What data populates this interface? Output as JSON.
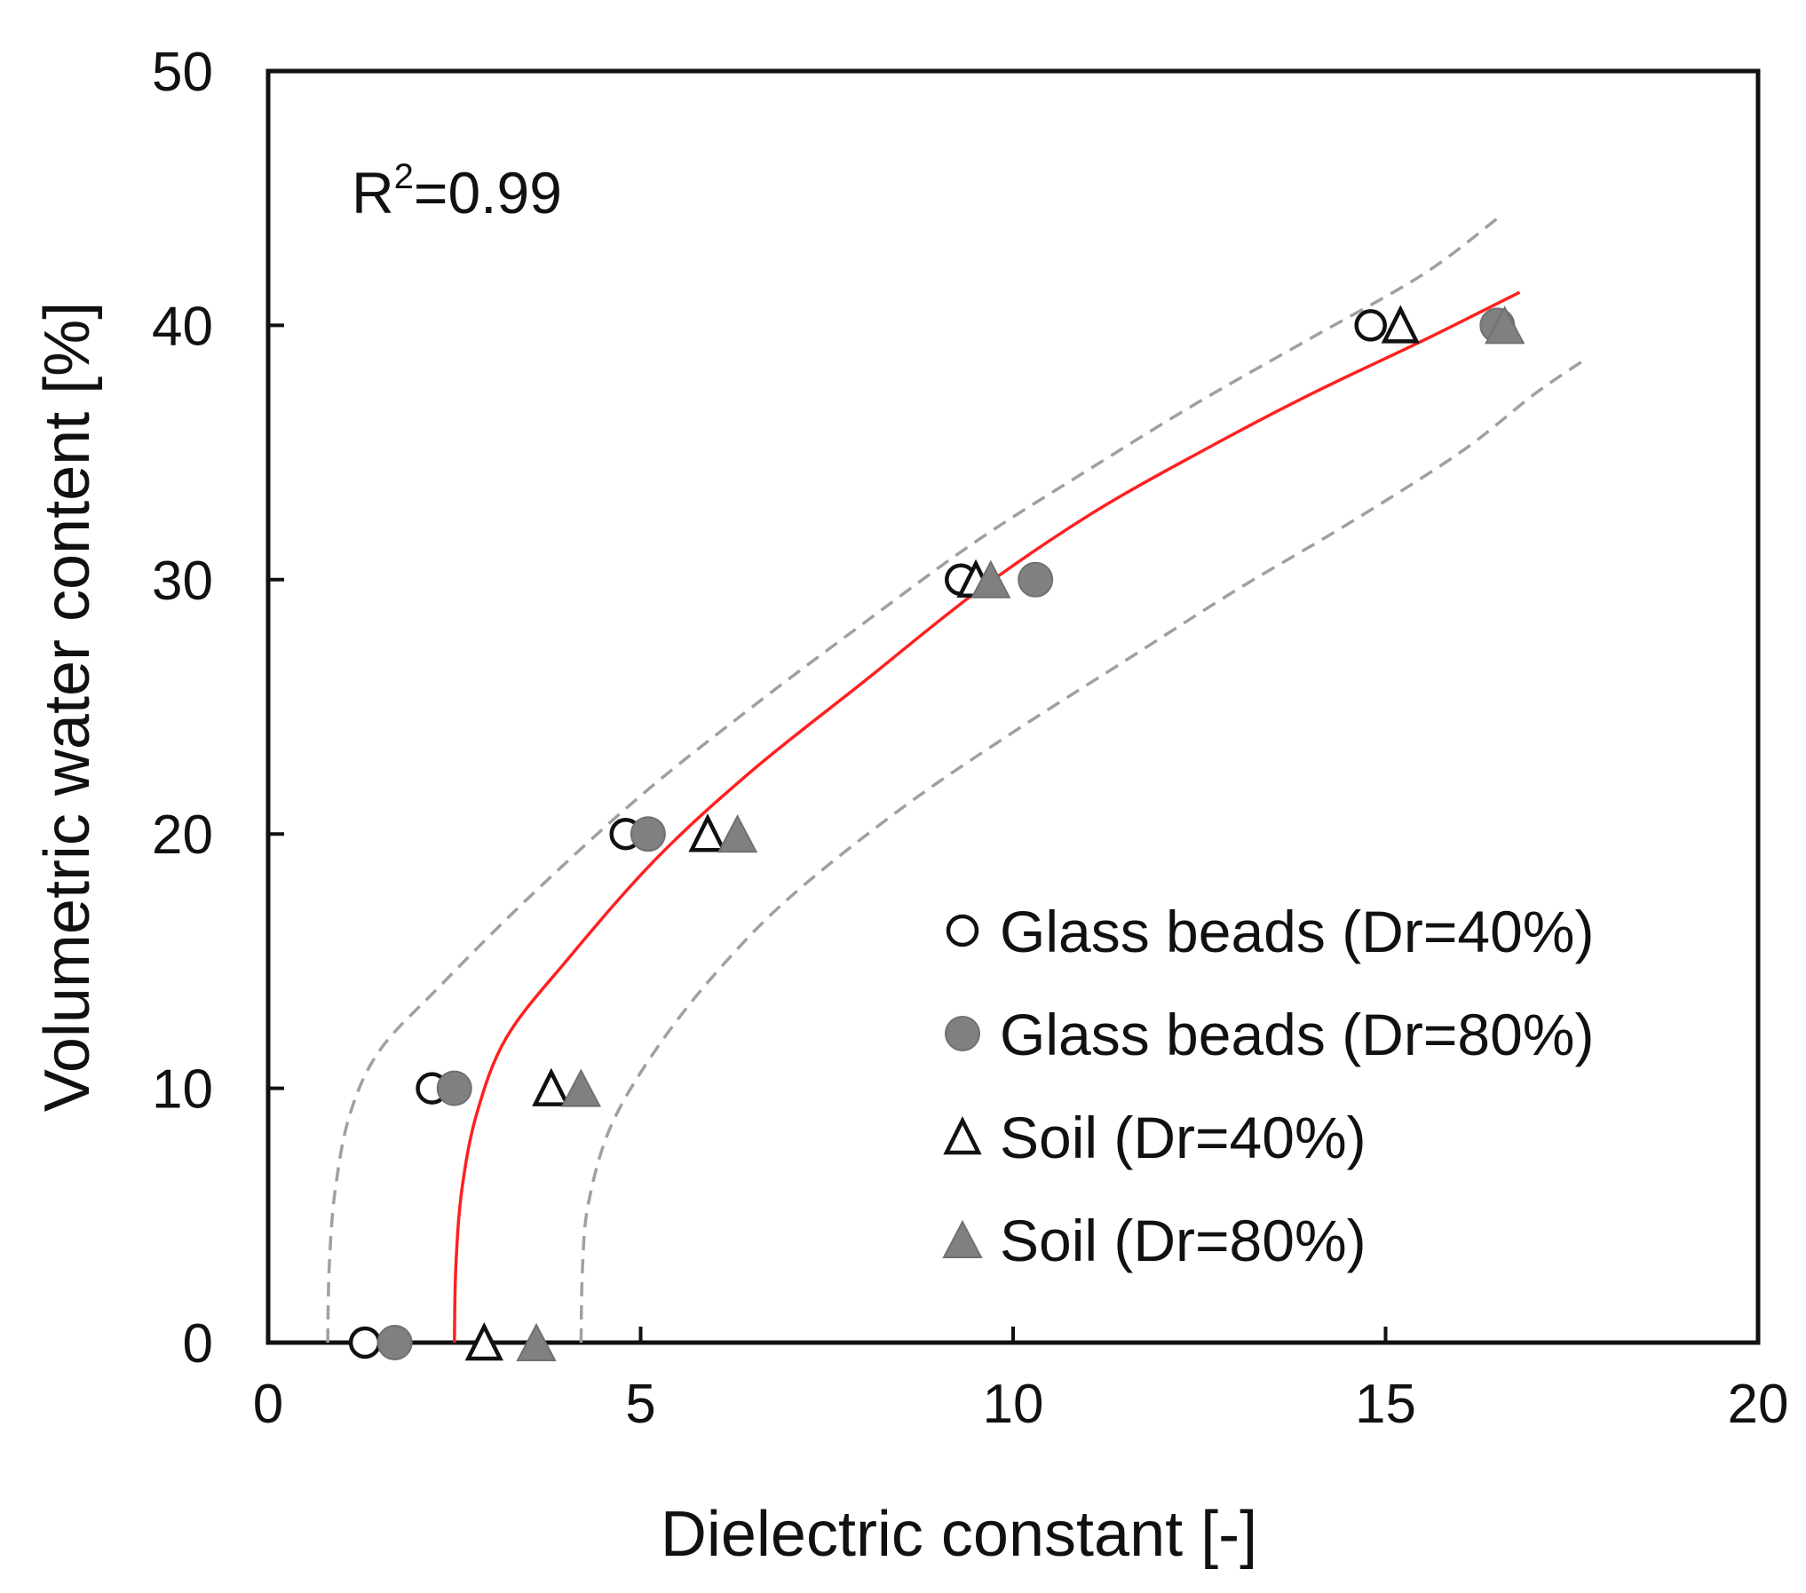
{
  "chart_data": {
    "type": "scatter",
    "title": "",
    "xlabel": "Dielectric constant [-]",
    "ylabel": "Volumetric water content [%]",
    "xlim": [
      0,
      20
    ],
    "ylim": [
      0,
      50
    ],
    "xticks": [
      0,
      5,
      10,
      15,
      20
    ],
    "yticks": [
      0,
      10,
      20,
      30,
      40,
      50
    ],
    "annotation": {
      "prefix": "R",
      "sup": "2",
      "suffix": "=0.99"
    },
    "legend_position": "lower-right",
    "series": [
      {
        "name": "Glass beads (Dr=40%)",
        "marker": "circle-open",
        "color": "#111111",
        "points": [
          [
            1.3,
            0
          ],
          [
            2.2,
            10
          ],
          [
            4.8,
            20
          ],
          [
            9.3,
            30
          ],
          [
            14.8,
            40
          ]
        ]
      },
      {
        "name": "Glass beads (Dr=80%)",
        "marker": "circle-filled",
        "color": "#808080",
        "points": [
          [
            1.7,
            0
          ],
          [
            2.5,
            10
          ],
          [
            5.1,
            20
          ],
          [
            10.3,
            30
          ],
          [
            16.5,
            40
          ]
        ]
      },
      {
        "name": "Soil (Dr=40%)",
        "marker": "triangle-open",
        "color": "#111111",
        "points": [
          [
            2.9,
            0
          ],
          [
            3.8,
            10
          ],
          [
            5.9,
            20
          ],
          [
            9.5,
            30
          ],
          [
            15.2,
            40
          ]
        ]
      },
      {
        "name": "Soil (Dr=80%)",
        "marker": "triangle-filled",
        "color": "#808080",
        "points": [
          [
            3.6,
            0
          ],
          [
            4.2,
            10
          ],
          [
            6.3,
            20
          ],
          [
            9.7,
            30
          ],
          [
            16.6,
            40
          ]
        ]
      }
    ],
    "curves": [
      {
        "name": "fit",
        "style": "solid",
        "color": "#ff2020",
        "points": [
          [
            2.5,
            0
          ],
          [
            2.52,
            3
          ],
          [
            2.6,
            6
          ],
          [
            2.8,
            9
          ],
          [
            3.2,
            12
          ],
          [
            4.0,
            15
          ],
          [
            5.2,
            19
          ],
          [
            6.5,
            22.5
          ],
          [
            8.0,
            26
          ],
          [
            9.5,
            29.5
          ],
          [
            11.0,
            32.5
          ],
          [
            12.5,
            35
          ],
          [
            14.0,
            37.3
          ],
          [
            15.5,
            39.4
          ],
          [
            16.8,
            41.3
          ]
        ]
      },
      {
        "name": "upper bound",
        "style": "dashed",
        "color": "#a0a0a0",
        "points": [
          [
            0.8,
            0
          ],
          [
            0.82,
            3
          ],
          [
            0.9,
            6
          ],
          [
            1.1,
            9
          ],
          [
            1.5,
            11.5
          ],
          [
            2.3,
            14
          ],
          [
            3.5,
            17.5
          ],
          [
            5.0,
            21.5
          ],
          [
            6.5,
            25
          ],
          [
            8.0,
            28.3
          ],
          [
            9.5,
            31.5
          ],
          [
            11.0,
            34.3
          ],
          [
            12.5,
            37
          ],
          [
            14.0,
            39.5
          ],
          [
            15.5,
            42
          ],
          [
            16.5,
            44.2
          ]
        ]
      },
      {
        "name": "lower bound",
        "style": "dashed",
        "color": "#a0a0a0",
        "points": [
          [
            4.2,
            0
          ],
          [
            4.22,
            3
          ],
          [
            4.3,
            5.5
          ],
          [
            4.6,
            8.5
          ],
          [
            5.2,
            11.5
          ],
          [
            6.0,
            14.5
          ],
          [
            7.0,
            17.5
          ],
          [
            8.5,
            21
          ],
          [
            10.0,
            24
          ],
          [
            11.5,
            26.8
          ],
          [
            13.0,
            29.6
          ],
          [
            14.5,
            32.2
          ],
          [
            16.0,
            35
          ],
          [
            17.0,
            37.3
          ],
          [
            17.7,
            38.7
          ]
        ]
      }
    ]
  }
}
